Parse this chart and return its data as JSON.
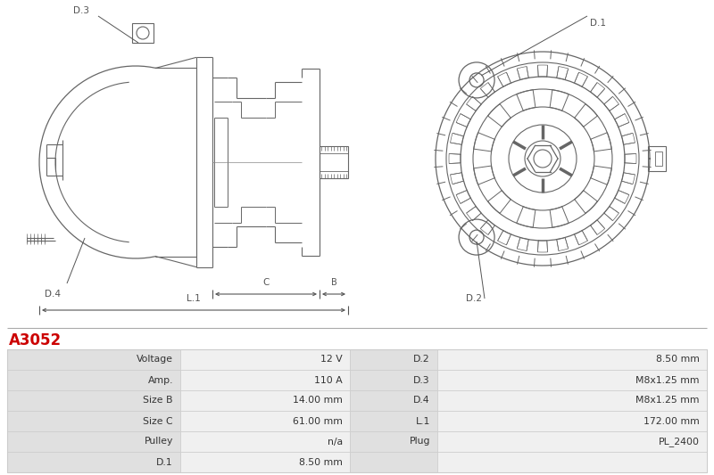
{
  "title": "A3052",
  "title_color": "#cc0000",
  "bg_color": "#ffffff",
  "table_rows": [
    [
      "Voltage",
      "12 V",
      "D.2",
      "8.50 mm"
    ],
    [
      "Amp.",
      "110 A",
      "D.3",
      "M8x1.25 mm"
    ],
    [
      "Size B",
      "14.00 mm",
      "D.4",
      "M8x1.25 mm"
    ],
    [
      "Size C",
      "61.00 mm",
      "L.1",
      "172.00 mm"
    ],
    [
      "Pulley",
      "n/a",
      "Plug",
      "PL_2400"
    ],
    [
      "D.1",
      "8.50 mm",
      "",
      ""
    ]
  ],
  "line_color": "#666666",
  "dim_color": "#555555",
  "table_label_bg": "#e0e0e0",
  "table_val_bg": "#f0f0f0",
  "table_border": "#cccccc",
  "table_text": "#333333"
}
